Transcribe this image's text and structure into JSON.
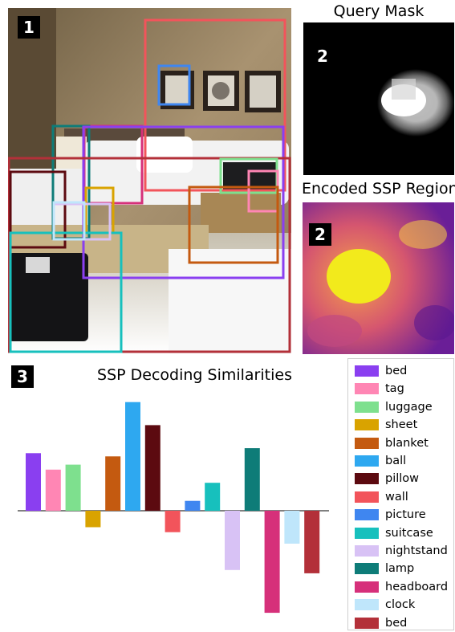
{
  "panels": {
    "p1": {
      "badge": "1"
    },
    "p2a": {
      "title": "Query Mask",
      "badge": "2"
    },
    "p2b": {
      "title": "Encoded SSP Region",
      "badge": "2"
    },
    "p3": {
      "badge": "3"
    }
  },
  "boxes": [
    {
      "label": "wall",
      "color": "#f2545b"
    },
    {
      "label": "picture",
      "color": "#3f86f0"
    },
    {
      "label": "headboard",
      "color": "#d6307a"
    },
    {
      "label": "lamp",
      "color": "#0e7c78"
    },
    {
      "label": "bed",
      "color": "#8a3ff0"
    },
    {
      "label": "bed",
      "color": "#b33039"
    },
    {
      "label": "pillow",
      "color": "#5c0a10"
    },
    {
      "label": "sheet",
      "color": "#d9a300"
    },
    {
      "label": "luggage",
      "color": "#7ee08e"
    },
    {
      "label": "tag",
      "color": "#ff86b4"
    },
    {
      "label": "blanket",
      "color": "#c45a10"
    },
    {
      "label": "suitcase",
      "color": "#17c0bd"
    },
    {
      "label": "nightstand",
      "color": "#d8c2f5"
    },
    {
      "label": "clock",
      "color": "#bfe6fb"
    }
  ],
  "chart_data": {
    "type": "bar",
    "title": "SSP Decoding Similarities",
    "categories": [
      "bed",
      "tag",
      "luggage",
      "sheet",
      "blanket",
      "ball",
      "pillow",
      "wall",
      "picture",
      "suitcase",
      "nightstand",
      "lamp",
      "headboard",
      "clock",
      "bed"
    ],
    "values": [
      0.35,
      0.25,
      0.28,
      -0.1,
      0.33,
      0.66,
      0.52,
      -0.13,
      0.06,
      0.17,
      -0.36,
      0.38,
      -0.62,
      -0.2,
      -0.38
    ],
    "colors": [
      "#8a3ff0",
      "#ff86b4",
      "#7ee08e",
      "#d9a300",
      "#c45a10",
      "#2ea8f0",
      "#5c0a10",
      "#f2545b",
      "#3f86f0",
      "#17c0bd",
      "#d8c2f5",
      "#0e7c78",
      "#d6307a",
      "#bfe6fb",
      "#b33039"
    ],
    "xlabel": "",
    "ylabel": "",
    "ylim": [
      -0.7,
      0.7
    ],
    "legend_position": "right",
    "grid": false
  }
}
